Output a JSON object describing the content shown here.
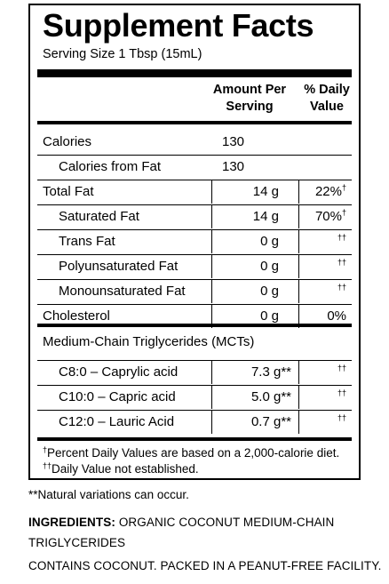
{
  "panel": {
    "title": "Supplement Facts",
    "serving_size": "Serving Size 1 Tbsp (15mL)",
    "header": {
      "amount_line1": "Amount Per",
      "amount_line2": "Serving",
      "dv_line1": "% Daily",
      "dv_line2": "Value"
    },
    "rows": [
      {
        "label": "Calories",
        "amount": "130",
        "dv": "",
        "dv_mark": ""
      },
      {
        "label": "Calories from Fat",
        "amount": "130",
        "dv": "",
        "dv_mark": ""
      },
      {
        "label": "Total Fat",
        "amount": "14 g",
        "dv": "22%",
        "dv_mark": "†"
      },
      {
        "label": "Saturated Fat",
        "amount": "14 g",
        "dv": "70%",
        "dv_mark": "†"
      },
      {
        "label": "Trans Fat",
        "amount": "0 g",
        "dv": "",
        "dv_mark": "††"
      },
      {
        "label": "Polyunsaturated Fat",
        "amount": "0 g",
        "dv": "",
        "dv_mark": "††"
      },
      {
        "label": "Monounsaturated Fat",
        "amount": "0 g",
        "dv": "",
        "dv_mark": "††"
      },
      {
        "label": "Cholesterol",
        "amount": "0 g",
        "dv": "0%",
        "dv_mark": ""
      }
    ],
    "mct_heading": "Medium-Chain Triglycerides (MCTs)",
    "mct_rows": [
      {
        "label": "C8:0 – Caprylic acid",
        "amount": "7.3 g",
        "amount_mark": "**",
        "dv_mark": "††"
      },
      {
        "label": "C10:0 – Capric acid",
        "amount": "5.0 g",
        "amount_mark": "**",
        "dv_mark": "††"
      },
      {
        "label": "C12:0 – Lauric Acid",
        "amount": "0.7 g",
        "amount_mark": "**",
        "dv_mark": "††"
      }
    ],
    "footnote1_mark": "†",
    "footnote1": "Percent Daily Values are based on a 2,000-calorie diet.",
    "footnote2_mark": "††",
    "footnote2": "Daily Value not established."
  },
  "natural_note": "**Natural variations can occur.",
  "ingredients_label": "INGREDIENTS:",
  "ingredients_text": " ORGANIC COCONUT MEDIUM-CHAIN",
  "ingredients_text2": "TRIGLYCERIDES",
  "contains": "CONTAINS COCONUT. PACKED IN A PEANUT-FREE FACILITY."
}
